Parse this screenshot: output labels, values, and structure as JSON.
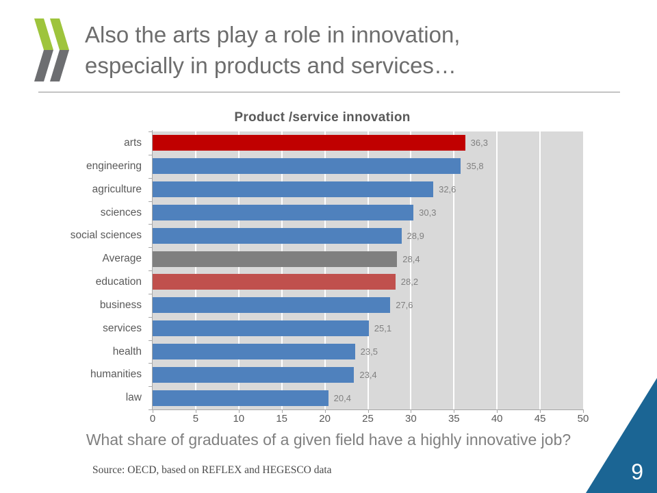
{
  "slide": {
    "title_line1": "Also the arts play a role in innovation,",
    "title_line2": "especially in products and services…",
    "caption": "What share of graduates of a given field have a highly innovative job?",
    "source": "Source: OECD, based on REFLEX and HEGESCO data",
    "page_number": "9",
    "logo_icon": "oecd-double-chevron-icon"
  },
  "chart_data": {
    "type": "bar",
    "orientation": "horizontal",
    "title": "Product /service innovation",
    "categories": [
      "arts",
      "engineering",
      "agriculture",
      "sciences",
      "social sciences",
      "Average",
      "education",
      "business",
      "services",
      "health",
      "humanities",
      "law"
    ],
    "values": [
      36.3,
      35.8,
      32.6,
      30.3,
      28.9,
      28.4,
      28.2,
      27.6,
      25.1,
      23.5,
      23.4,
      20.4
    ],
    "value_labels": [
      "36,3",
      "35,8",
      "32,6",
      "30,3",
      "28,9",
      "28,4",
      "28,2",
      "27,6",
      "25,1",
      "23,5",
      "23,4",
      "20,4"
    ],
    "bar_colors": [
      "#C00000",
      "#4F81BD",
      "#4F81BD",
      "#4F81BD",
      "#4F81BD",
      "#7F7F7F",
      "#C0504D",
      "#4F81BD",
      "#4F81BD",
      "#4F81BD",
      "#4F81BD",
      "#4F81BD"
    ],
    "xlim": [
      0,
      50
    ],
    "x_ticks": [
      0,
      5,
      10,
      15,
      20,
      25,
      30,
      35,
      40,
      45,
      50
    ],
    "grid": true,
    "legend": false,
    "plot_background": "#D9D9D9",
    "gridline_color": "#FFFFFF",
    "xlabel": "",
    "ylabel": ""
  },
  "colors": {
    "accent_blue": "#4F81BD",
    "highlight_red": "#C00000",
    "education_red": "#C0504D",
    "average_gray": "#7F7F7F",
    "corner_blue": "#1B6594",
    "logo_green": "#9EC43C",
    "logo_gray": "#6D6E71",
    "title_gray": "#6D6D6D"
  }
}
